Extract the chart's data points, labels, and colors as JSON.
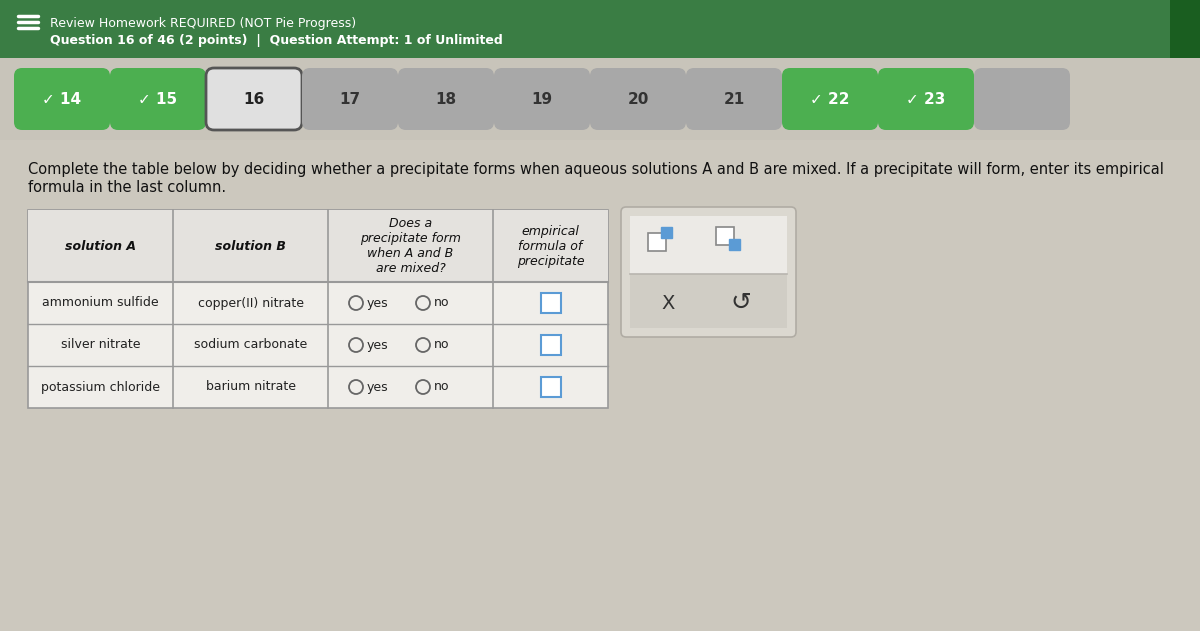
{
  "header_bg": "#3a7d44",
  "header_text_color": "#ffffff",
  "page_bg": "#ccc8be",
  "nav_bg": "#c8c4ba",
  "table_bg": "#f0eeea",
  "table_header_bg": "#e4e2de",
  "table_border": "#999999",
  "header_line1": "Review Homework REQUIRED (NOT Pie Progress)",
  "header_line2": "Question 16 of 46 (2 points)  |  Question Attempt: 1 of Unlimited",
  "nav_items": [
    {
      "label": "14",
      "checked": true
    },
    {
      "label": "15",
      "checked": true
    },
    {
      "label": "16",
      "checked": false,
      "current": true
    },
    {
      "label": "17",
      "checked": false
    },
    {
      "label": "18",
      "checked": false
    },
    {
      "label": "19",
      "checked": false
    },
    {
      "label": "20",
      "checked": false
    },
    {
      "label": "21",
      "checked": false
    },
    {
      "label": "22",
      "checked": true
    },
    {
      "label": "23",
      "checked": true
    }
  ],
  "nav_green": "#4caf50",
  "nav_gray": "#a8a8a8",
  "instruction_line1": "Complete the table below by deciding whether a precipitate forms when aqueous solutions A and B are mixed. If a precipitate will form, enter its empirical",
  "instruction_line2": "formula in the last column.",
  "col_headers": [
    "solution A",
    "solution B",
    "Does a\nprecipitate form\nwhen A and B\nare mixed?",
    "empirical\nformula of\nprecipitate"
  ],
  "rows": [
    [
      "ammonium sulfide",
      "copper(II) nitrate"
    ],
    [
      "silver nitrate",
      "sodium carbonate"
    ],
    [
      "potassium chloride",
      "barium nitrate"
    ]
  ],
  "input_box_border": "#5b9bd5",
  "panel_bg": "#dbd8d0",
  "panel_border": "#b0aca4",
  "panel_top_bg": "#eceae6",
  "panel_icon_color": "#5b9bd5",
  "panel_icon_border": "#888888"
}
